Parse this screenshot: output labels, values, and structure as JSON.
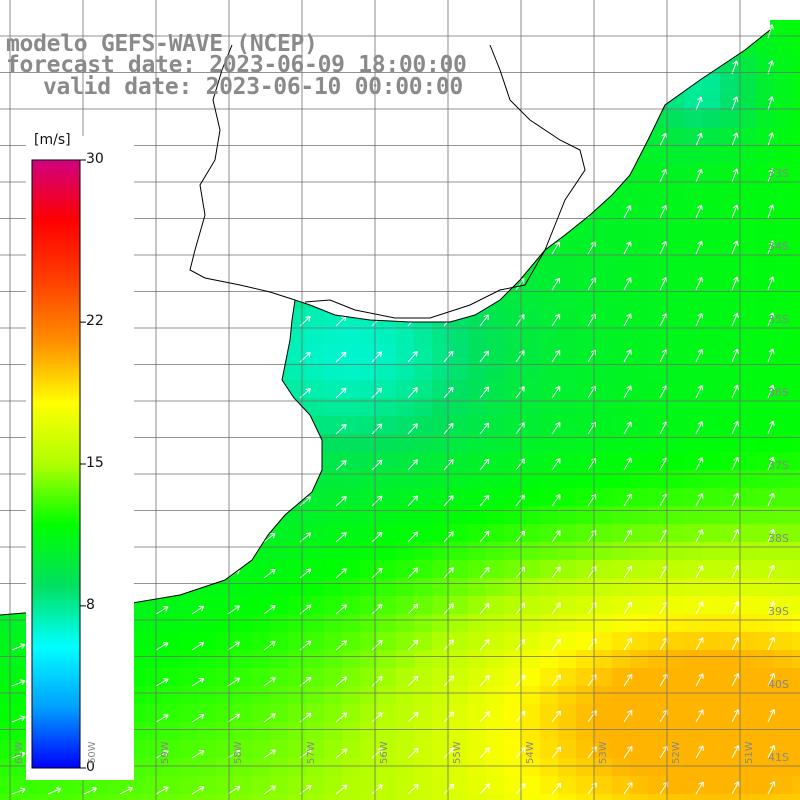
{
  "title": {
    "line1": "modelo GEFS-WAVE (NCEP)",
    "line2": "forecast date: 2023-06-09 18:00:00",
    "line3": "valid date: 2023-06-10 00:00:00"
  },
  "colorbar": {
    "unit": "[m/s]",
    "min": 0,
    "max": 30,
    "ticks": [
      {
        "value": 30,
        "label": "30"
      },
      {
        "value": 22,
        "label": "22"
      },
      {
        "value": 15,
        "label": "15"
      },
      {
        "value": 8,
        "label": "8"
      },
      {
        "value": 0,
        "label": "0"
      }
    ],
    "stops": [
      "#0000ff",
      "#00a0ff",
      "#00ffff",
      "#00e060",
      "#00ff00",
      "#b0ff00",
      "#ffff00",
      "#ff9000",
      "#ff4000",
      "#ff0000",
      "#d00080"
    ]
  },
  "grid": {
    "lat_labels": [
      "33S",
      "34S",
      "35S",
      "36S",
      "37S",
      "38S",
      "39S",
      "40S",
      "41S"
    ],
    "lon_labels": [
      "61W",
      "60W",
      "59W",
      "58W",
      "57W",
      "56W",
      "55W",
      "54W",
      "53W",
      "52W",
      "51W"
    ]
  },
  "map_data": {
    "variable": "wind speed",
    "unit": "m/s",
    "region": "Rio de la Plata / SW Atlantic",
    "lon_range": [
      -61,
      -51
    ],
    "lat_range": [
      -41,
      -32
    ],
    "arrow_direction": "toward northeast",
    "max_field_value": 20
  },
  "colors": {
    "title": "#8a8a8a",
    "land": "#ffffff",
    "coast": "#000000",
    "grid": "#6f6f6f",
    "arrow": "#ffffff"
  }
}
